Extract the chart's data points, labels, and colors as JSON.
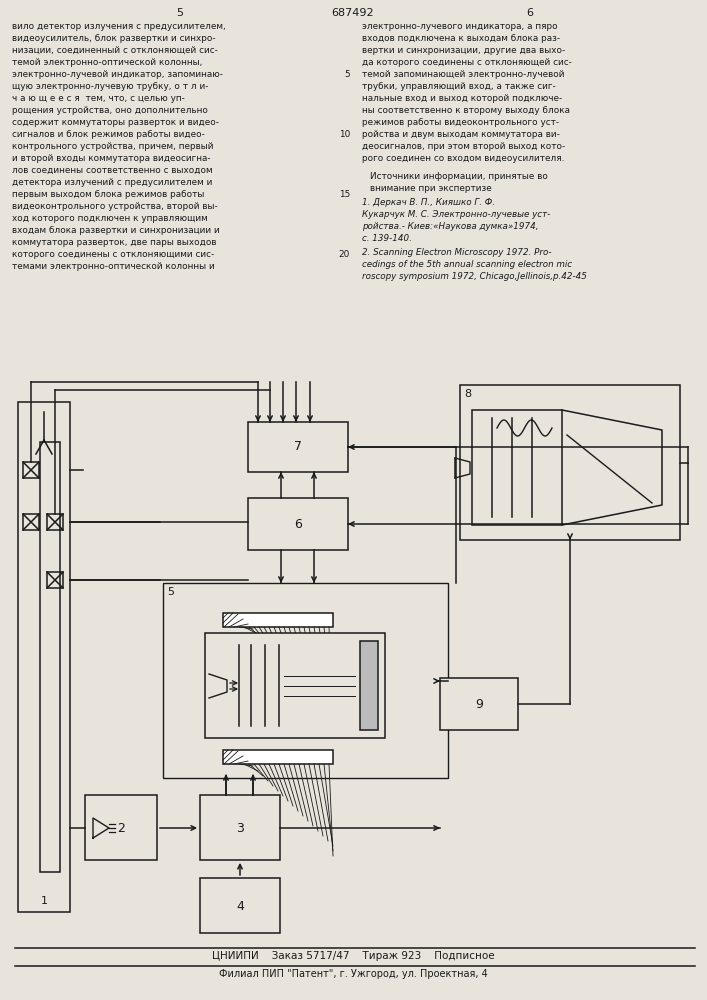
{
  "bg_color": "#e8e4dc",
  "lc": "#1a1a1a",
  "page_num_left": "5",
  "page_num_center": "687492",
  "page_num_right": "6",
  "text_col1": [
    "вило детектор излучения с предусилителем,",
    "видеоусилитель, блок развертки и синхро-",
    "низации, соединенный с отклоняющей сис-",
    "темой электронно-оптической колонны,",
    "электронно-лучевой индикатор, запоминаю-",
    "щую электронно-лучевую трубку, о т л и-",
    "ч а ю щ е е с я  тем, что, с целью уп-",
    "рощения устройства, оно дополнительно",
    "содержит коммутаторы разверток и видео-",
    "сигналов и блок режимов работы видео-",
    "контрольного устройства, причем, первый",
    "и второй входы коммутатора видеосигна-",
    "лов соединены соответственно с выходом",
    "детектора излучений с предусилителем и",
    "первым выходом блока режимов работы",
    "видеоконтрольного устройства, второй вы-",
    "ход которого подключен к управляющим",
    "входам блока развертки и синхронизации и",
    "коммутатора разверток, две пары выходов",
    "которого соединены с отклоняющими сис-",
    "темами электронно-оптической колонны и"
  ],
  "text_col2": [
    "электронно-лучевого индикатора, а пяро",
    "входов подключена к выходам блока раз-",
    "вертки и синхронизации, другие два выхо-",
    "да которого соединены с отклоняющей сис-",
    "темой запоминающей электронно-лучевой",
    "трубки, управляющий вход, а также сиг-",
    "нальные вход и выход которой подключе-",
    "ны соответственно к второму выходу блока",
    "режимов работы видеоконтрольного уст-",
    "ройства и двум выходам коммутатора ви-",
    "деосигналов, при этом второй выход кото-",
    "рого соединен со входом видеоусилителя."
  ],
  "sources_title1": "Источники информации, принятые во",
  "sources_title2": "внимание при экспертизе",
  "source1_lines": [
    "1. Деркач В. П., Кияшко Г. Ф.",
    "Кукарчук М. С. Электронно-лучевые уст-",
    "ройства.- Киев:«Наукова думка»1974,",
    "с. 139-140."
  ],
  "source2_lines": [
    "2. Scanning Electron Microscopy 1972. Pro-",
    "cedings of the 5th annual scanning electron mic",
    "roscopy symposium 1972, Chicago,Jellinois,p.42-45"
  ],
  "footer1": "ЦНИИПИ    Заказ 5717/47    Тираж 923    Подписное",
  "footer2": "Филиал ПИП \"Патент\", г. Ужгород, ул. Проектная, 4",
  "line_nums_rows": [
    4,
    9,
    14,
    19
  ],
  "line_nums_vals": [
    5,
    10,
    15,
    20
  ]
}
